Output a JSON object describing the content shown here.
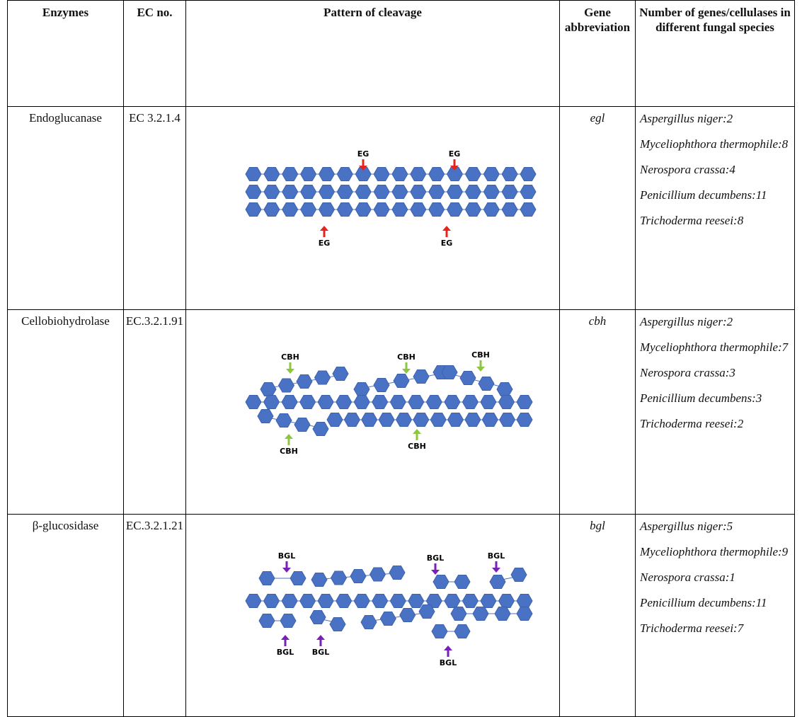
{
  "table": {
    "header": [
      "Enzymes",
      "EC no.",
      "Pattern of cleavage",
      "Gene abbreviation",
      "Number of genes/cellulases in different fungal species"
    ],
    "rows": [
      {
        "enzyme": "Endoglucanase",
        "ec": "EC 3.2.1.4",
        "pattern_labels": [
          "EG",
          "EG",
          "EG",
          "EG"
        ],
        "gene": "egl",
        "species": [
          "Aspergillus niger:2",
          "Myceliophthora thermophile:8",
          "Nerospora crassa:4",
          "Penicillium decumbens:11",
          "Trichoderma reesei:8"
        ]
      },
      {
        "enzyme": "Cellobiohydrolase",
        "ec": "EC.3.2.1.91",
        "pattern_labels": [
          "CBH",
          "CBH",
          "CBH",
          "CBH",
          "CBH"
        ],
        "gene": "cbh",
        "species": [
          "Aspergillus niger:2",
          "Myceliophthora thermophile:7",
          "Nerospora crassa:3",
          "Penicillium decumbens:3",
          "Trichoderma reesei:2"
        ]
      },
      {
        "enzyme": "β-glucosidase",
        "ec": "EC.3.2.1.21",
        "pattern_labels": [
          "BGL",
          "BGL",
          "BGL",
          "BGL",
          "BGL",
          "BGL"
        ],
        "gene": "bgl",
        "species": [
          "Aspergillus niger:5",
          "Myceliophthora thermophile:9",
          "Nerospora crassa:1",
          "Penicillium decumbens:11",
          "Trichoderma reesei:7"
        ]
      }
    ]
  }
}
